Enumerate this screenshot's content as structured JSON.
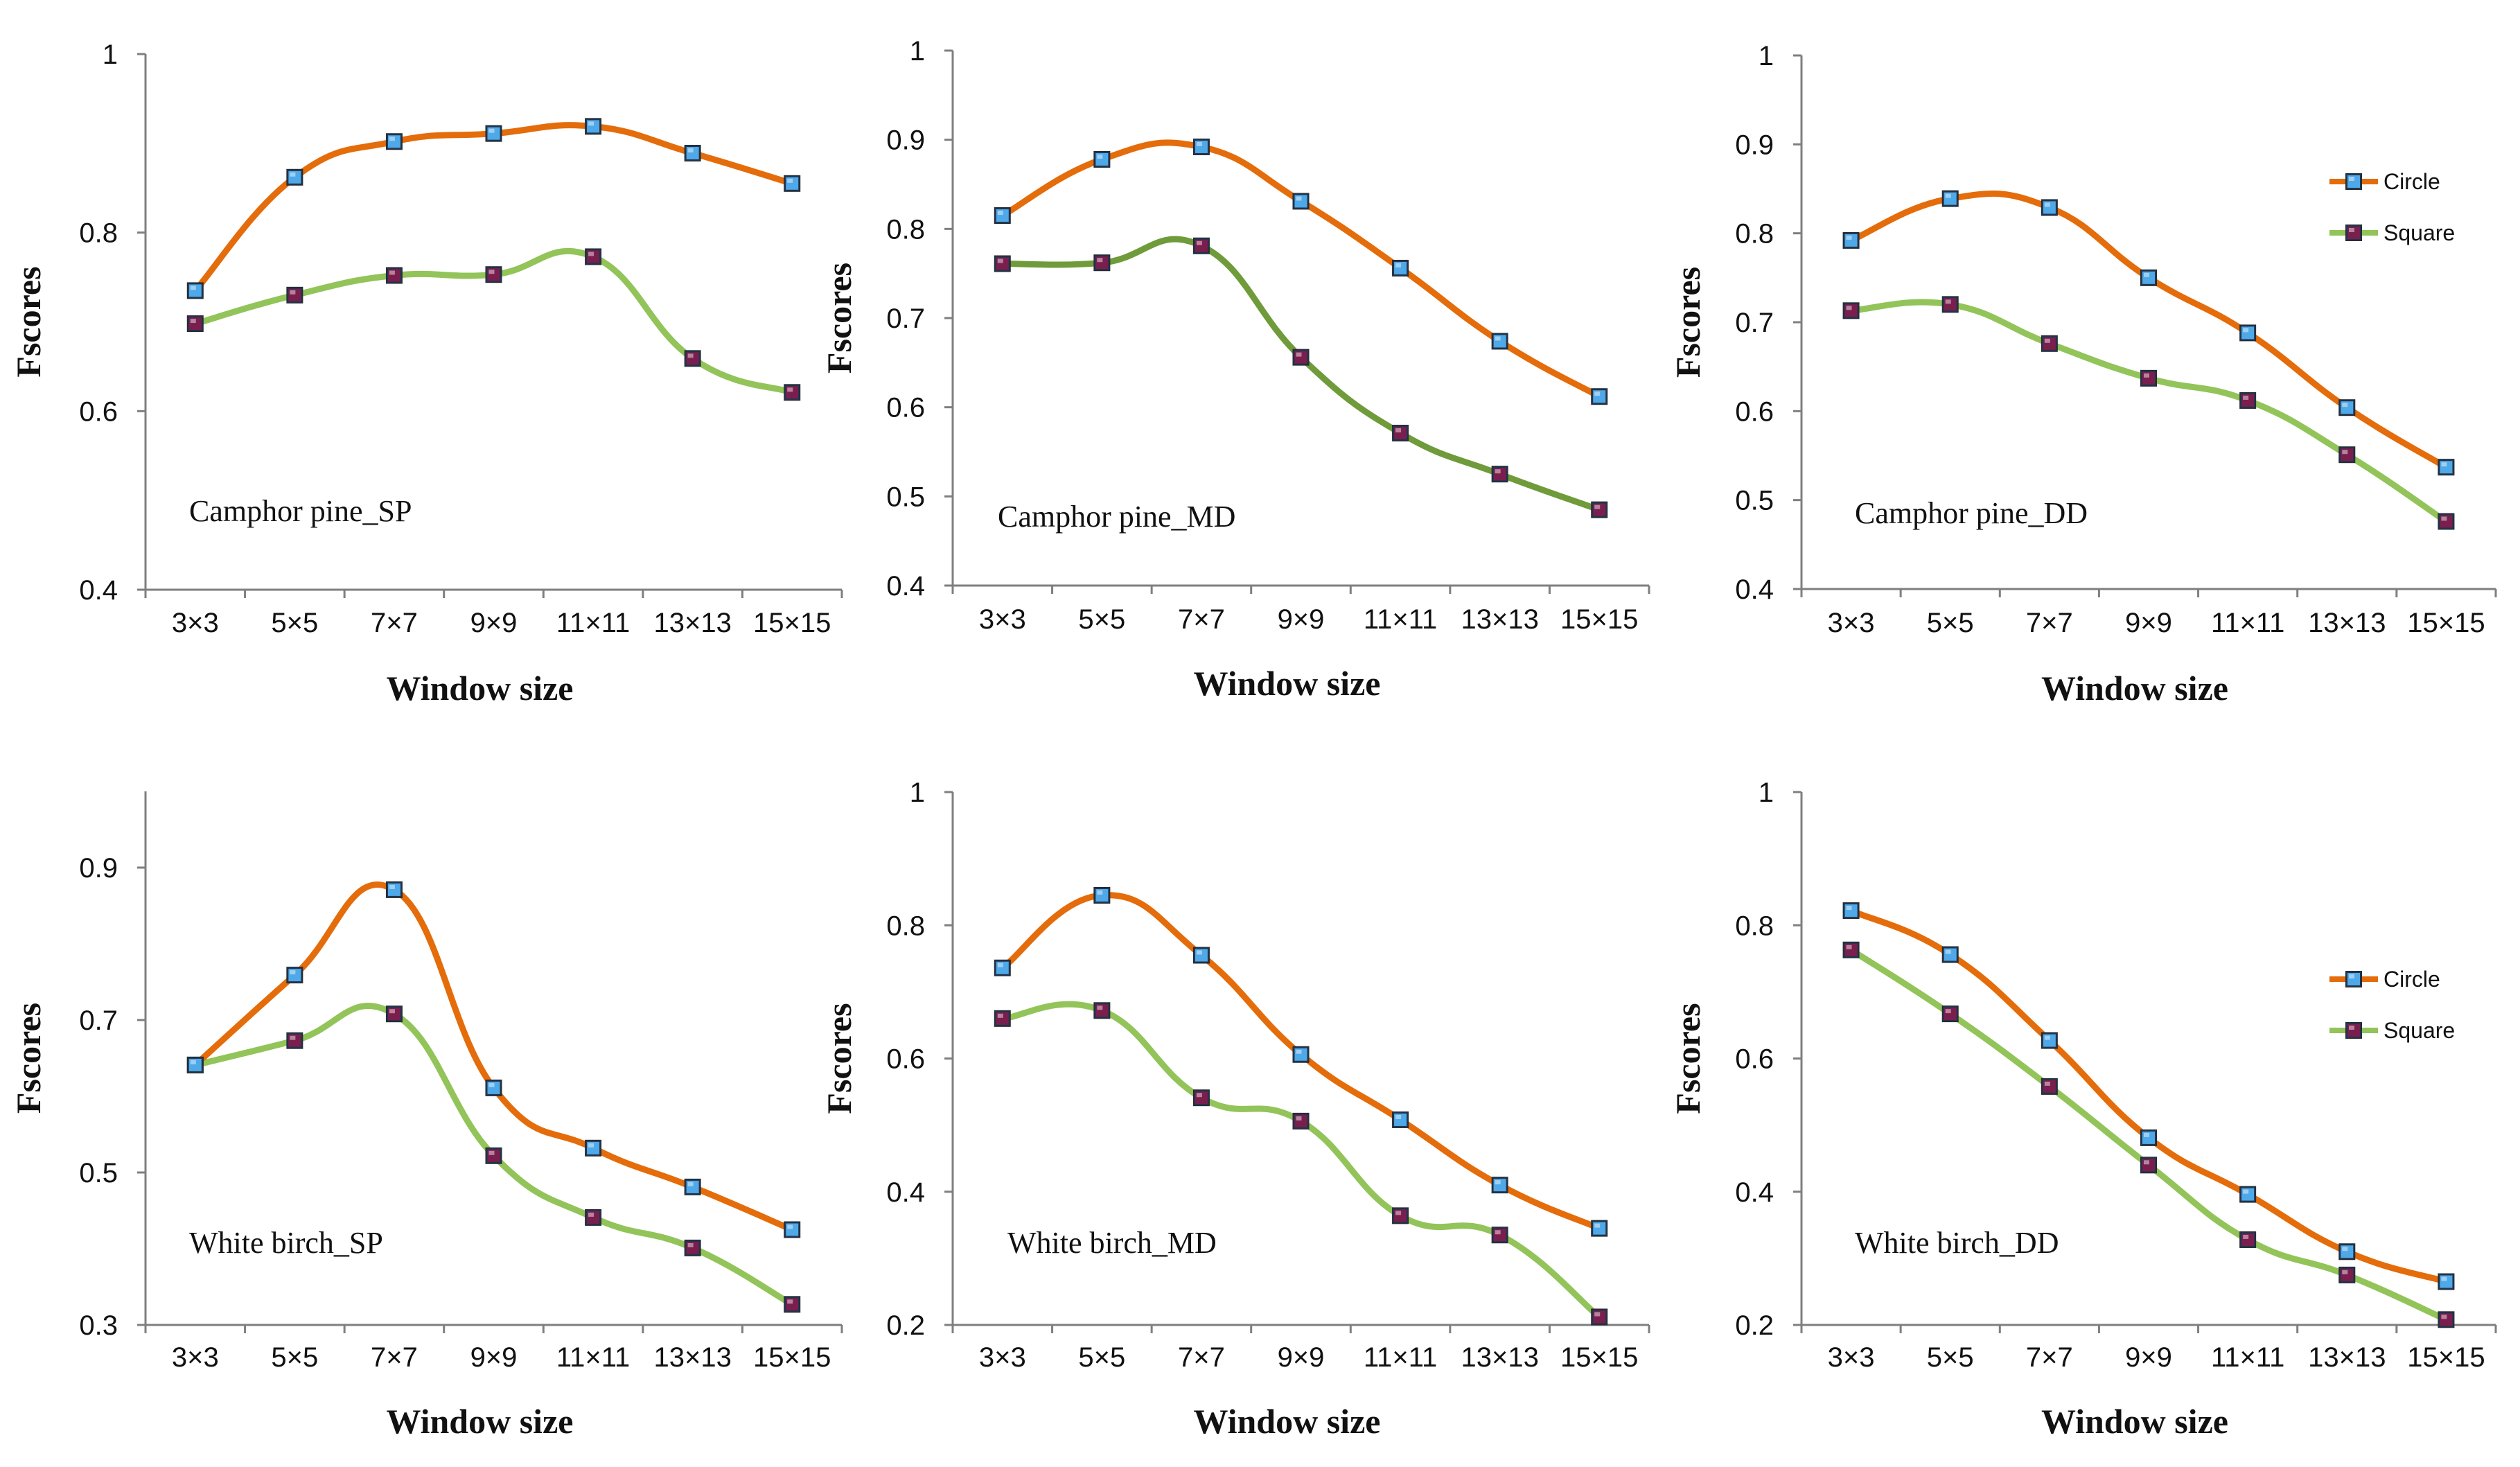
{
  "colors": {
    "circle_line": "#E46C0A",
    "square_line": "#92C45A",
    "square_line_dark": "#6F9B3A",
    "circle_marker": "#4FA8E8",
    "square_marker": "#7A1E4E"
  },
  "legend": {
    "circle": "Circle",
    "square": "Square"
  },
  "chart_data": [
    {
      "type": "line",
      "title": "Camphor pine_SP",
      "xlabel": "Window size",
      "ylabel": "Fscores",
      "categories": [
        "3×3",
        "5×5",
        "7×7",
        "9×9",
        "11×11",
        "13×13",
        "15×15"
      ],
      "ylim": [
        0.4,
        1
      ],
      "yticks": [
        "0.4",
        "0.6",
        "0.8",
        "1"
      ],
      "series": [
        {
          "name": "Circle",
          "values": [
            0.735,
            0.862,
            0.902,
            0.911,
            0.919,
            0.889,
            0.855
          ]
        },
        {
          "name": "Square",
          "values": [
            0.698,
            0.73,
            0.752,
            0.753,
            0.773,
            0.659,
            0.621
          ]
        }
      ]
    },
    {
      "type": "line",
      "title": "Camphor pine_MD",
      "xlabel": "Window size",
      "ylabel": "Fscores",
      "categories": [
        "3×3",
        "5×5",
        "7×7",
        "9×9",
        "11×11",
        "13×13",
        "15×15"
      ],
      "ylim": [
        0.4,
        1
      ],
      "yticks": [
        "0.4",
        "0.5",
        "0.6",
        "0.7",
        "0.8",
        "0.9",
        "1"
      ],
      "series": [
        {
          "name": "Circle",
          "values": [
            0.815,
            0.878,
            0.892,
            0.831,
            0.756,
            0.674,
            0.612
          ]
        },
        {
          "name": "Square",
          "values": [
            0.761,
            0.762,
            0.781,
            0.656,
            0.571,
            0.525,
            0.485
          ]
        }
      ]
    },
    {
      "type": "line",
      "title": "Camphor pine_DD",
      "xlabel": "Window size",
      "ylabel": "Fscores",
      "categories": [
        "3×3",
        "5×5",
        "7×7",
        "9×9",
        "11×11",
        "13×13",
        "15×15"
      ],
      "ylim": [
        0.4,
        1
      ],
      "yticks": [
        "0.4",
        "0.5",
        "0.6",
        "0.7",
        "0.8",
        "0.9",
        "1"
      ],
      "legend": true,
      "series": [
        {
          "name": "Circle",
          "values": [
            0.792,
            0.839,
            0.829,
            0.75,
            0.688,
            0.604,
            0.537
          ]
        },
        {
          "name": "Square",
          "values": [
            0.713,
            0.72,
            0.676,
            0.637,
            0.612,
            0.551,
            0.476
          ]
        }
      ]
    },
    {
      "type": "line",
      "title": "White birch_SP",
      "xlabel": "Window size",
      "ylabel": "Fscores",
      "categories": [
        "3×3",
        "5×5",
        "7×7",
        "9×9",
        "11×11",
        "13×13",
        "15×15"
      ],
      "ylim": [
        0.3,
        1
      ],
      "yticks": [
        "0.3",
        "0.5",
        "0.7",
        "0.9"
      ],
      "series": [
        {
          "name": "Circle",
          "values": [
            0.641,
            0.759,
            0.871,
            0.611,
            0.532,
            0.481,
            0.425
          ]
        },
        {
          "name": "Square",
          "values": [
            0.641,
            0.673,
            0.708,
            0.522,
            0.441,
            0.401,
            0.327
          ]
        }
      ]
    },
    {
      "type": "line",
      "title": "White birch_MD",
      "xlabel": "Window size",
      "ylabel": "Fscores",
      "categories": [
        "3×3",
        "5×5",
        "7×7",
        "9×9",
        "11×11",
        "13×13",
        "15×15"
      ],
      "ylim": [
        0.2,
        1
      ],
      "yticks": [
        "0.2",
        "0.4",
        "0.6",
        "0.8",
        "1"
      ],
      "series": [
        {
          "name": "Circle",
          "values": [
            0.736,
            0.845,
            0.755,
            0.606,
            0.508,
            0.41,
            0.345
          ]
        },
        {
          "name": "Square",
          "values": [
            0.66,
            0.672,
            0.541,
            0.506,
            0.364,
            0.335,
            0.212
          ]
        }
      ]
    },
    {
      "type": "line",
      "title": "White birch_DD",
      "xlabel": "Window size",
      "ylabel": "Fscores",
      "categories": [
        "3×3",
        "5×5",
        "7×7",
        "9×9",
        "11×11",
        "13×13",
        "15×15"
      ],
      "ylim": [
        0.2,
        1
      ],
      "yticks": [
        "0.2",
        "0.4",
        "0.6",
        "0.8",
        "1"
      ],
      "legend": true,
      "series": [
        {
          "name": "Circle",
          "values": [
            0.822,
            0.756,
            0.627,
            0.481,
            0.396,
            0.31,
            0.265
          ]
        },
        {
          "name": "Square",
          "values": [
            0.763,
            0.667,
            0.558,
            0.44,
            0.328,
            0.275,
            0.208
          ]
        }
      ]
    }
  ]
}
